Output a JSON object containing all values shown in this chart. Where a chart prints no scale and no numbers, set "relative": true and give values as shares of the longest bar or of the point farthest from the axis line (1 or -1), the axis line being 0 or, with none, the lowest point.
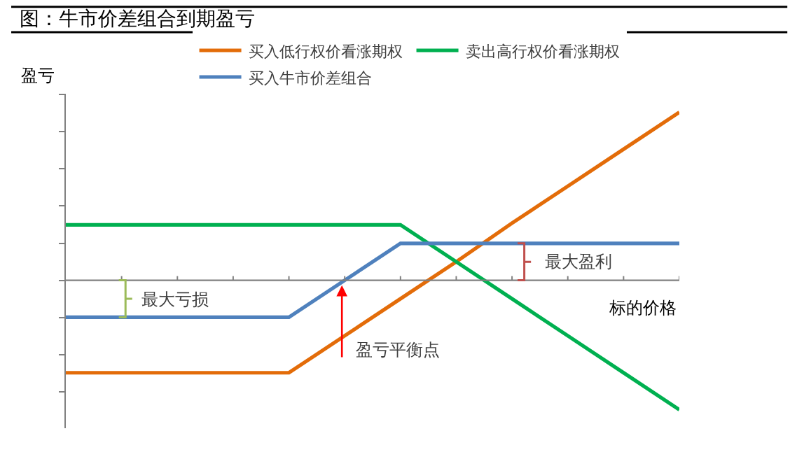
{
  "chart_data": {
    "type": "line",
    "title": "图：牛市价差组合到期盈亏",
    "xlabel": "标的价格",
    "ylabel": "盈亏",
    "relative": true,
    "legend": "top",
    "marker": "none",
    "line_style": "solid",
    "categories": [
      null,
      null,
      null,
      null,
      null,
      null,
      null,
      null,
      null,
      null,
      null,
      null
    ],
    "series": [
      {
        "name": "买入低行权价看涨期权",
        "color": "#e36c09",
        "values": [
          -0.55,
          -0.55,
          -0.55,
          -0.55,
          -0.55,
          -0.33,
          -0.11,
          0.11,
          0.34,
          0.56,
          0.78,
          1.0
        ]
      },
      {
        "name": "卖出高行权价看涨期权",
        "color": "#00b050",
        "values": [
          0.33,
          0.33,
          0.33,
          0.33,
          0.33,
          0.33,
          0.33,
          0.11,
          -0.11,
          -0.33,
          -0.55,
          -0.77
        ]
      },
      {
        "name": "买入牛市价差组合",
        "color": "#4f81bd",
        "values": [
          -0.22,
          -0.22,
          -0.22,
          -0.22,
          -0.22,
          0,
          0.22,
          0.22,
          0.22,
          0.22,
          0.22,
          0.22
        ]
      }
    ],
    "annotations": [
      "最大亏损",
      "最大盈利",
      "盈亏平衡点"
    ]
  }
}
